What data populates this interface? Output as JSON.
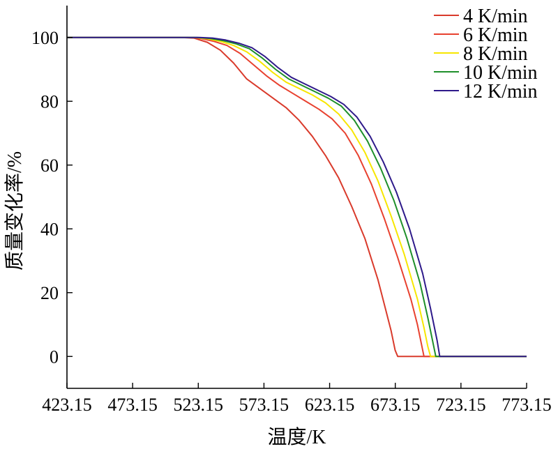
{
  "chart_data": {
    "type": "line",
    "title": "",
    "xlabel": "温度/K",
    "ylabel": "质量变化率/%",
    "xlim": [
      423.15,
      773.15
    ],
    "ylim": [
      -10,
      110
    ],
    "xticks": [
      423.15,
      473.15,
      523.15,
      573.15,
      623.15,
      673.15,
      723.15,
      773.15
    ],
    "xtick_labels": [
      "423.15",
      "473.15",
      "523.15",
      "573.15",
      "623.15",
      "673.15",
      "723.15",
      "773.15"
    ],
    "yticks": [
      0,
      20,
      40,
      60,
      80,
      100
    ],
    "ytick_labels": [
      "0",
      "20",
      "40",
      "60",
      "80",
      "100"
    ],
    "grid": false,
    "legend": "top-right",
    "series": [
      {
        "name": "4 K/min",
        "color": "#d93a2b",
        "x": [
          423.15,
          510,
          520,
          530,
          540,
          550,
          560,
          570,
          580,
          590,
          600,
          610,
          620,
          630,
          640,
          650,
          660,
          665,
          670,
          673,
          675,
          676,
          773.15
        ],
        "y": [
          100,
          100,
          99.8,
          98.5,
          96,
          92,
          87,
          84,
          81,
          78,
          74,
          69,
          63,
          56,
          47,
          37,
          24,
          16,
          8,
          2,
          0,
          0,
          0
        ]
      },
      {
        "name": "6 K/min",
        "color": "#e8412f",
        "x": [
          423.15,
          515,
          525,
          535,
          545,
          555,
          565,
          575,
          585,
          595,
          605,
          615,
          625,
          635,
          645,
          655,
          665,
          675,
          685,
          690,
          693,
          695,
          773.15
        ],
        "y": [
          100,
          100,
          99.7,
          98.8,
          97.5,
          95,
          91.5,
          88,
          85,
          82.5,
          80,
          77.5,
          74.5,
          70,
          63,
          54,
          43,
          31,
          18,
          10,
          4,
          0,
          0
        ]
      },
      {
        "name": "8 K/min",
        "color": "#f7e600",
        "x": [
          423.15,
          520,
          530,
          540,
          550,
          560,
          570,
          580,
          590,
          600,
          610,
          620,
          630,
          640,
          650,
          660,
          670,
          680,
          690,
          695,
          698,
          700,
          773.15
        ],
        "y": [
          100,
          100,
          99.6,
          98.8,
          97.5,
          95.5,
          92.5,
          89,
          86,
          84,
          82,
          79.5,
          76,
          71,
          64,
          55,
          44,
          32,
          18,
          9,
          3,
          0,
          0
        ]
      },
      {
        "name": "10 K/min",
        "color": "#1e8f2a",
        "x": [
          423.15,
          522,
          532,
          542,
          552,
          562,
          572,
          582,
          592,
          602,
          612,
          622,
          632,
          642,
          652,
          662,
          672,
          682,
          692,
          698,
          702,
          704,
          773.15
        ],
        "y": [
          100,
          100,
          99.7,
          99,
          98,
          96.5,
          93.5,
          90,
          87,
          85,
          83,
          81,
          78.5,
          74,
          67.5,
          59,
          49,
          37,
          23,
          12,
          4,
          0,
          0
        ]
      },
      {
        "name": "12 K/min",
        "color": "#2e1a8a",
        "x": [
          423.15,
          524,
          534,
          544,
          554,
          564,
          574,
          584,
          594,
          604,
          614,
          624,
          634,
          644,
          654,
          664,
          674,
          684,
          694,
          700,
          705,
          707,
          773.15
        ],
        "y": [
          100,
          100,
          99.8,
          99.2,
          98.2,
          96.8,
          94,
          90.5,
          87.5,
          85.5,
          83.5,
          81.5,
          79,
          75,
          69,
          61,
          51.5,
          40,
          26,
          15,
          5,
          0,
          0
        ]
      }
    ]
  }
}
